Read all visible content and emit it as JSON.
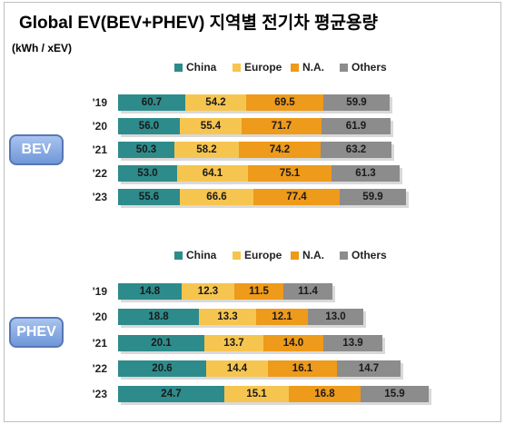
{
  "title": "Global EV(BEV+PHEV) 지역별 전기차 평균용량",
  "unit": "(kWh / xEV)",
  "colors": {
    "China": "#2e8b8b",
    "Europe": "#f6c550",
    "N.A.": "#ee9a1a",
    "Others": "#8c8c8c"
  },
  "chart_data": [
    {
      "type": "bar",
      "stacked": true,
      "orientation": "horizontal",
      "group_label": "BEV",
      "categories": [
        "'19",
        "'20",
        "'21",
        "'22",
        "'23"
      ],
      "legend": [
        "China",
        "Europe",
        "N.A.",
        "Others"
      ],
      "series": [
        {
          "name": "China",
          "values": [
            60.7,
            56.0,
            50.3,
            53.0,
            55.6
          ]
        },
        {
          "name": "Europe",
          "values": [
            54.2,
            55.4,
            58.2,
            64.1,
            66.6
          ]
        },
        {
          "name": "N.A.",
          "values": [
            69.5,
            71.7,
            74.2,
            75.1,
            77.4
          ]
        },
        {
          "name": "Others",
          "values": [
            59.9,
            61.9,
            63.2,
            61.3,
            59.9
          ]
        }
      ]
    },
    {
      "type": "bar",
      "stacked": true,
      "orientation": "horizontal",
      "group_label": "PHEV",
      "categories": [
        "'19",
        "'20",
        "'21",
        "'22",
        "'23"
      ],
      "legend": [
        "China",
        "Europe",
        "N.A.",
        "Others"
      ],
      "series": [
        {
          "name": "China",
          "values": [
            14.8,
            18.8,
            20.1,
            20.6,
            24.7
          ]
        },
        {
          "name": "Europe",
          "values": [
            12.3,
            13.3,
            13.7,
            14.4,
            15.1
          ]
        },
        {
          "name": "N.A.",
          "values": [
            11.5,
            12.1,
            14.0,
            16.1,
            16.8
          ]
        },
        {
          "name": "Others",
          "values": [
            11.4,
            13.0,
            13.9,
            14.7,
            15.9
          ]
        }
      ]
    }
  ]
}
